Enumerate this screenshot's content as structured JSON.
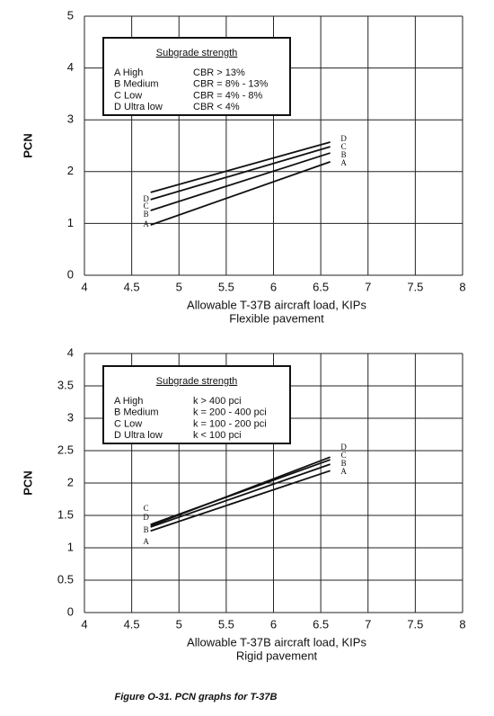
{
  "caption": "Figure O-31.  PCN graphs for T-37B",
  "chart_data": [
    {
      "type": "line",
      "xlabel": "Allowable T-37B aircraft load, KIPs",
      "subtitle": "Flexible pavement",
      "ylabel": "PCN",
      "xlim": [
        4,
        8
      ],
      "xticks": [
        4,
        4.5,
        5,
        5.5,
        6,
        6.5,
        7,
        7.5,
        8
      ],
      "ylim": [
        0,
        5
      ],
      "yticks": [
        0,
        1,
        2,
        3,
        4,
        5
      ],
      "grid": true,
      "legend_title": "Subgrade strength",
      "legend_rows": [
        {
          "label": "A  High",
          "desc": "CBR > 13%"
        },
        {
          "label": "B  Medium",
          "desc": "CBR = 8% - 13%"
        },
        {
          "label": "C  Low",
          "desc": "CBR = 4% - 8%"
        },
        {
          "label": "D  Ultra low",
          "desc": "CBR < 4%"
        }
      ],
      "x": [
        4.7,
        6.6
      ],
      "series": [
        {
          "name": "A",
          "color": "#111111",
          "values": [
            0.97,
            2.19
          ]
        },
        {
          "name": "B",
          "color": "#111111",
          "values": [
            1.25,
            2.36
          ]
        },
        {
          "name": "C",
          "color": "#111111",
          "values": [
            1.46,
            2.48
          ]
        },
        {
          "name": "D",
          "color": "#111111",
          "values": [
            1.6,
            2.57
          ]
        }
      ]
    },
    {
      "type": "line",
      "xlabel": "Allowable T-37B aircraft load, KIPs",
      "subtitle": "Rigid pavement",
      "ylabel": "PCN",
      "xlim": [
        4,
        8
      ],
      "xticks": [
        4,
        4.5,
        5,
        5.5,
        6,
        6.5,
        7,
        7.5,
        8
      ],
      "ylim": [
        0,
        4
      ],
      "yticks": [
        0,
        0.5,
        1,
        1.5,
        2,
        2.5,
        3,
        3.5,
        4
      ],
      "grid": true,
      "legend_title": "Subgrade strength",
      "legend_rows": [
        {
          "label": "A  High",
          "desc": "k > 400 pci"
        },
        {
          "label": "B  Medium",
          "desc": "k = 200 - 400 pci"
        },
        {
          "label": "C  Low",
          "desc": "k = 100 - 200 pci"
        },
        {
          "label": "D  Ultra low",
          "desc": "k < 100 pci"
        }
      ],
      "x": [
        4.7,
        6.6
      ],
      "series": [
        {
          "name": "A",
          "color": "#111111",
          "values": [
            1.26,
            2.19
          ]
        },
        {
          "name": "B",
          "color": "#111111",
          "values": [
            1.32,
            2.29
          ]
        },
        {
          "name": "C",
          "color": "#111111",
          "values": [
            1.36,
            2.36
          ]
        },
        {
          "name": "D",
          "color": "#111111",
          "values": [
            1.34,
            2.4
          ]
        }
      ]
    }
  ]
}
